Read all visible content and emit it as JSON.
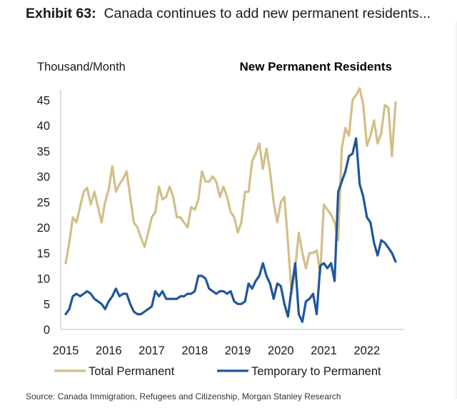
{
  "header": {
    "exhibit_label": "Exhibit 63:",
    "title_text": "Canada continues to add new permanent residents..."
  },
  "source": "Source: Canada Immigration, Refugees and Citizenship, Morgan Stanley Research",
  "colors": {
    "total": "#d2bf88",
    "temporary": "#20569b",
    "axis": "#bfbfbf",
    "text": "#1a1a1a"
  },
  "chart_data": {
    "type": "line",
    "title": "New Permanent Residents",
    "ylabel": "Thousand/Month",
    "xlabel": "",
    "ylim": [
      0,
      47
    ],
    "xlim": [
      2015,
      2022.85
    ],
    "yticks": [
      0,
      5,
      10,
      15,
      20,
      25,
      30,
      35,
      40,
      45
    ],
    "xticks": [
      "2015",
      "2016",
      "2017",
      "2018",
      "2019",
      "2020",
      "2021",
      "2022"
    ],
    "grid": false,
    "legend": "bottom",
    "x_units": "year (monthly observations, Jan 2015 onward)",
    "series": [
      {
        "name": "Total Permanent",
        "color": "#d2bf88",
        "values": [
          13.0,
          17.0,
          22.0,
          21.0,
          24.0,
          27.0,
          27.8,
          24.5,
          27.0,
          24.0,
          21.0,
          25.0,
          27.5,
          32.0,
          27.0,
          28.5,
          29.5,
          31.0,
          26.0,
          21.0,
          20.0,
          18.0,
          16.2,
          19.0,
          22.0,
          23.0,
          28.0,
          25.5,
          26.0,
          28.0,
          26.0,
          22.0,
          22.0,
          21.0,
          20.0,
          24.0,
          23.5,
          25.5,
          31.0,
          29.0,
          29.0,
          30.0,
          29.0,
          26.0,
          28.0,
          26.0,
          23.0,
          22.0,
          19.0,
          21.0,
          27.0,
          27.0,
          33.0,
          34.5,
          36.5,
          31.5,
          35.5,
          31.0,
          25.0,
          21.0,
          25.0,
          26.0,
          17.0,
          7.0,
          12.0,
          19.0,
          15.0,
          12.0,
          15.0,
          15.0,
          15.5,
          11.0,
          24.5,
          23.5,
          22.5,
          21.0,
          17.5,
          35.5,
          39.5,
          38.0,
          45.0,
          46.0,
          47.3,
          44.0,
          36.0,
          38.0,
          41.0,
          36.5,
          38.5,
          44.0,
          43.5,
          34.0,
          44.5
        ]
      },
      {
        "name": "Temporary to Permanent",
        "color": "#20569b",
        "values": [
          3.0,
          4.0,
          6.5,
          7.0,
          6.5,
          7.0,
          7.5,
          7.0,
          6.0,
          5.5,
          5.0,
          4.0,
          5.5,
          6.5,
          8.0,
          6.5,
          7.0,
          7.0,
          5.0,
          3.5,
          3.0,
          3.0,
          3.5,
          4.0,
          4.5,
          7.5,
          6.5,
          7.5,
          6.0,
          6.0,
          6.0,
          6.0,
          6.5,
          6.5,
          7.0,
          7.0,
          7.5,
          10.5,
          10.5,
          10.0,
          8.0,
          7.5,
          7.0,
          7.5,
          7.5,
          7.0,
          7.5,
          5.5,
          5.0,
          5.0,
          5.5,
          9.0,
          8.0,
          9.5,
          10.5,
          13.0,
          10.5,
          9.0,
          6.0,
          9.0,
          8.5,
          5.0,
          2.5,
          8.0,
          13.0,
          3.0,
          1.5,
          5.5,
          6.0,
          7.0,
          3.0,
          12.5,
          13.0,
          12.0,
          13.0,
          9.5,
          27.0,
          29.0,
          31.0,
          34.0,
          34.5,
          37.5,
          28.5,
          26.0,
          22.0,
          21.0,
          17.0,
          14.5,
          17.5,
          17.0,
          16.0,
          15.0,
          13.3
        ]
      }
    ]
  }
}
